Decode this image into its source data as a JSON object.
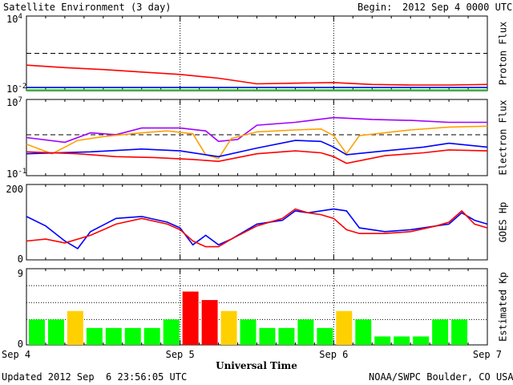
{
  "header": {
    "title": "Satellite Environment (3 day)",
    "begin_label": "Begin:",
    "begin_value": "2012 Sep 4 0000 UTC"
  },
  "footer": {
    "updated": "Updated 2012 Sep  6 23:56:05 UTC",
    "credit": "NOAA/SWPC Boulder, CO USA"
  },
  "chart_data": [
    {
      "type": "line",
      "panel": "proton",
      "ylabel": "Proton Flux",
      "ylim_exp": [
        -2,
        4
      ],
      "y_scale": "log",
      "y_ticks": [
        {
          "mant": "10",
          "exp": "4",
          "val": 4
        },
        {
          "mant": "10",
          "exp": "-2",
          "val": -2
        }
      ],
      "threshold_exp": 1,
      "x_range_hours": [
        0,
        72
      ],
      "series": [
        {
          "color": "#ff0000",
          "points": [
            [
              0,
              0.05
            ],
            [
              6,
              -0.15
            ],
            [
              12,
              -0.3
            ],
            [
              18,
              -0.5
            ],
            [
              24,
              -0.7
            ],
            [
              30,
              -1.0
            ],
            [
              36,
              -1.45
            ],
            [
              42,
              -1.4
            ],
            [
              48,
              -1.35
            ],
            [
              54,
              -1.5
            ],
            [
              60,
              -1.55
            ],
            [
              66,
              -1.55
            ],
            [
              72,
              -1.5
            ]
          ]
        },
        {
          "color": "#0000ff",
          "points": [
            [
              0,
              -1.75
            ],
            [
              12,
              -1.75
            ],
            [
              24,
              -1.75
            ],
            [
              36,
              -1.75
            ],
            [
              48,
              -1.75
            ],
            [
              60,
              -1.75
            ],
            [
              72,
              -1.75
            ]
          ]
        },
        {
          "color": "#00e000",
          "points": [
            [
              0,
              -1.95
            ],
            [
              12,
              -1.95
            ],
            [
              24,
              -1.95
            ],
            [
              36,
              -1.95
            ],
            [
              48,
              -1.95
            ],
            [
              60,
              -1.95
            ],
            [
              72,
              -1.95
            ]
          ]
        }
      ]
    },
    {
      "type": "line",
      "panel": "electron",
      "ylabel": "Electron Flux",
      "ylim_exp": [
        -1,
        7
      ],
      "y_scale": "log",
      "y_ticks": [
        {
          "mant": "10",
          "exp": "7",
          "val": 7
        },
        {
          "mant": "10",
          "exp": "-1",
          "val": -1
        }
      ],
      "threshold_exp": 3.3,
      "x_range_hours": [
        0,
        72
      ],
      "series": [
        {
          "color": "#a000ff",
          "points": [
            [
              0,
              3
            ],
            [
              6,
              2.5
            ],
            [
              10,
              3.5
            ],
            [
              14,
              3.3
            ],
            [
              18,
              4
            ],
            [
              24,
              4
            ],
            [
              28,
              3.7
            ],
            [
              30,
              2.6
            ],
            [
              33,
              2.8
            ],
            [
              36,
              4.3
            ],
            [
              42,
              4.6
            ],
            [
              48,
              5.1
            ],
            [
              54,
              4.9
            ],
            [
              60,
              4.8
            ],
            [
              66,
              4.6
            ],
            [
              72,
              4.6
            ]
          ]
        },
        {
          "color": "#ffa000",
          "points": [
            [
              0,
              2.3
            ],
            [
              4,
              1.3
            ],
            [
              8,
              2.7
            ],
            [
              12,
              3.1
            ],
            [
              18,
              3.5
            ],
            [
              22,
              3.7
            ],
            [
              26,
              3.4
            ],
            [
              28,
              1.2
            ],
            [
              30,
              0.8
            ],
            [
              32,
              2.9
            ],
            [
              36,
              3.6
            ],
            [
              42,
              3.8
            ],
            [
              46,
              3.9
            ],
            [
              48,
              3.2
            ],
            [
              50,
              1.3
            ],
            [
              52,
              3.2
            ],
            [
              60,
              3.8
            ],
            [
              66,
              4.1
            ],
            [
              72,
              4.2
            ]
          ]
        },
        {
          "color": "#0000ff",
          "points": [
            [
              0,
              1.3
            ],
            [
              10,
              1.5
            ],
            [
              18,
              1.8
            ],
            [
              24,
              1.6
            ],
            [
              30,
              1.0
            ],
            [
              36,
              1.9
            ],
            [
              42,
              2.7
            ],
            [
              46,
              2.6
            ],
            [
              48,
              2.0
            ],
            [
              50,
              1.2
            ],
            [
              56,
              1.6
            ],
            [
              62,
              2.0
            ],
            [
              66,
              2.4
            ],
            [
              72,
              2.0
            ]
          ]
        },
        {
          "color": "#ff0000",
          "points": [
            [
              0,
              1.5
            ],
            [
              8,
              1.3
            ],
            [
              14,
              1.0
            ],
            [
              20,
              0.9
            ],
            [
              26,
              0.7
            ],
            [
              30,
              0.5
            ],
            [
              36,
              1.3
            ],
            [
              42,
              1.6
            ],
            [
              46,
              1.4
            ],
            [
              48,
              1.0
            ],
            [
              50,
              0.3
            ],
            [
              56,
              1.1
            ],
            [
              62,
              1.4
            ],
            [
              66,
              1.7
            ],
            [
              72,
              1.6
            ]
          ]
        }
      ]
    },
    {
      "type": "line",
      "panel": "hp",
      "ylabel": "GOES Hp",
      "ylim": [
        0,
        200
      ],
      "y_ticks": [
        {
          "label": "200",
          "val": 200
        },
        {
          "label": "0",
          "val": 0
        }
      ],
      "x_range_hours": [
        0,
        72
      ],
      "series": [
        {
          "color": "#0000ff",
          "points": [
            [
              0,
              115
            ],
            [
              3,
              90
            ],
            [
              6,
              50
            ],
            [
              8,
              30
            ],
            [
              10,
              75
            ],
            [
              14,
              110
            ],
            [
              18,
              115
            ],
            [
              22,
              100
            ],
            [
              24,
              85
            ],
            [
              26,
              40
            ],
            [
              28,
              65
            ],
            [
              30,
              40
            ],
            [
              32,
              55
            ],
            [
              36,
              95
            ],
            [
              40,
              105
            ],
            [
              42,
              130
            ],
            [
              44,
              125
            ],
            [
              46,
              130
            ],
            [
              48,
              135
            ],
            [
              50,
              130
            ],
            [
              52,
              85
            ],
            [
              54,
              80
            ],
            [
              56,
              75
            ],
            [
              60,
              80
            ],
            [
              64,
              90
            ],
            [
              66,
              95
            ],
            [
              68,
              125
            ],
            [
              70,
              105
            ],
            [
              72,
              95
            ]
          ]
        },
        {
          "color": "#ff0000",
          "points": [
            [
              0,
              50
            ],
            [
              3,
              55
            ],
            [
              6,
              45
            ],
            [
              10,
              65
            ],
            [
              14,
              95
            ],
            [
              18,
              110
            ],
            [
              22,
              95
            ],
            [
              24,
              80
            ],
            [
              26,
              50
            ],
            [
              28,
              35
            ],
            [
              30,
              35
            ],
            [
              32,
              55
            ],
            [
              36,
              90
            ],
            [
              40,
              110
            ],
            [
              42,
              135
            ],
            [
              44,
              125
            ],
            [
              46,
              120
            ],
            [
              48,
              110
            ],
            [
              50,
              80
            ],
            [
              52,
              70
            ],
            [
              56,
              70
            ],
            [
              60,
              75
            ],
            [
              64,
              90
            ],
            [
              66,
              100
            ],
            [
              68,
              130
            ],
            [
              70,
              95
            ],
            [
              72,
              85
            ]
          ]
        }
      ]
    },
    {
      "type": "bar",
      "panel": "kp",
      "ylabel": "Estimated Kp",
      "ylim": [
        0,
        9
      ],
      "y_ticks": [
        {
          "label": "9",
          "val": 9
        },
        {
          "label": "0",
          "val": 0
        }
      ],
      "x_range_hours": [
        0,
        72
      ],
      "bar_hours": 3,
      "values": [
        3,
        3,
        4,
        2,
        2,
        2,
        2,
        3,
        6.3,
        5.3,
        4,
        3,
        2,
        2,
        3,
        2,
        4,
        3,
        1,
        1,
        1,
        3,
        3,
        null
      ],
      "colors": {
        "low": "#00ff00",
        "mid": "#ffd000",
        "high": "#ff0000"
      }
    }
  ],
  "x_axis": {
    "label": "Universal Time",
    "ticks": [
      {
        "label": "Sep 4",
        "h": 0
      },
      {
        "label": "Sep 5",
        "h": 24
      },
      {
        "label": "Sep 6",
        "h": 48
      },
      {
        "label": "Sep 7",
        "h": 72
      }
    ]
  }
}
